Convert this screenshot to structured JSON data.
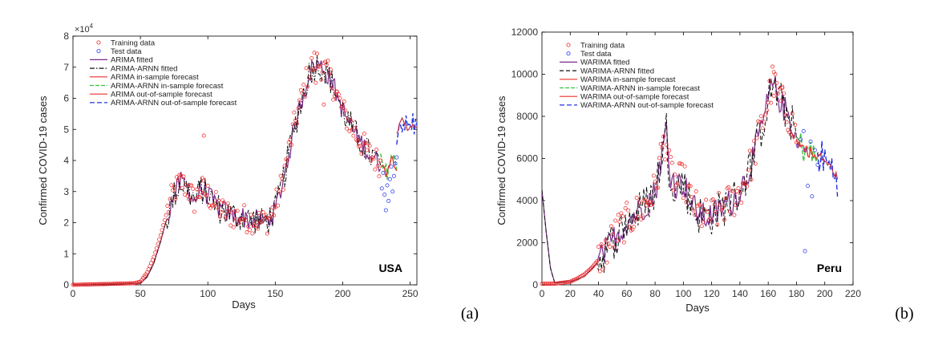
{
  "chart_data": [
    {
      "type": "line",
      "panel_label": "(a)",
      "country": "USA",
      "xlabel": "Days",
      "ylabel": "Confirmed COVID-19 cases",
      "y_multiplier": "×10^4",
      "y_mult_base": "×10",
      "y_mult_exp": "4",
      "xlim": [
        0,
        255
      ],
      "ylim": [
        0,
        8
      ],
      "xticks": [
        0,
        50,
        100,
        150,
        200,
        250
      ],
      "xtick_labels": [
        "0",
        "50",
        "100",
        "150",
        "200",
        "250"
      ],
      "yticks": [
        0,
        1,
        2,
        3,
        4,
        5,
        6,
        7,
        8
      ],
      "ytick_labels": [
        "0",
        "1",
        "2",
        "3",
        "4",
        "5",
        "6",
        "7",
        "8"
      ],
      "legend": [
        {
          "label": "Training data",
          "style": "marker-red"
        },
        {
          "label": "Test data",
          "style": "marker-blue"
        },
        {
          "label": "ARIMA fitted",
          "style": "solid-purple"
        },
        {
          "label": "ARIMA-ARNN fitted",
          "style": "dashdot-black"
        },
        {
          "label": "ARIMA in-sample forecast",
          "style": "solid-red"
        },
        {
          "label": "ARIMA-ARNN in-sample forecast",
          "style": "dashed-green"
        },
        {
          "label": "ARIMA out-of-sample forecast",
          "style": "solid-red"
        },
        {
          "label": "ARIMA-ARNN out-of-sample forecast",
          "style": "dashed-blue"
        }
      ],
      "training_key": [
        [
          0,
          0
        ],
        [
          45,
          0.05
        ],
        [
          50,
          0.1
        ],
        [
          55,
          0.4
        ],
        [
          60,
          0.9
        ],
        [
          65,
          1.6
        ],
        [
          70,
          2.4
        ],
        [
          75,
          3.0
        ],
        [
          80,
          3.3
        ],
        [
          85,
          3.1
        ],
        [
          90,
          2.7
        ],
        [
          95,
          3.1
        ],
        [
          100,
          2.9
        ],
        [
          105,
          2.6
        ],
        [
          110,
          2.4
        ],
        [
          115,
          2.3
        ],
        [
          120,
          2.2
        ],
        [
          125,
          2.2
        ],
        [
          130,
          2.1
        ],
        [
          135,
          2.1
        ],
        [
          140,
          2.0
        ],
        [
          145,
          2.1
        ],
        [
          150,
          2.5
        ],
        [
          155,
          3.3
        ],
        [
          160,
          4.3
        ],
        [
          165,
          5.3
        ],
        [
          170,
          6.1
        ],
        [
          175,
          6.9
        ],
        [
          180,
          7.2
        ],
        [
          185,
          7.0
        ],
        [
          190,
          6.7
        ],
        [
          195,
          6.2
        ],
        [
          200,
          5.6
        ],
        [
          205,
          5.2
        ],
        [
          210,
          4.8
        ],
        [
          215,
          4.5
        ],
        [
          220,
          4.2
        ],
        [
          225,
          4.0
        ],
        [
          228,
          3.9
        ]
      ],
      "fitted_key": [
        [
          0,
          0
        ],
        [
          50,
          0.05
        ],
        [
          55,
          0.25
        ],
        [
          60,
          0.7
        ],
        [
          65,
          1.4
        ],
        [
          70,
          2.2
        ],
        [
          75,
          2.9
        ],
        [
          80,
          3.3
        ],
        [
          85,
          3.1
        ],
        [
          90,
          2.7
        ],
        [
          95,
          3.1
        ],
        [
          100,
          2.9
        ],
        [
          105,
          2.6
        ],
        [
          110,
          2.4
        ],
        [
          115,
          2.3
        ],
        [
          120,
          2.2
        ],
        [
          125,
          2.2
        ],
        [
          130,
          2.1
        ],
        [
          135,
          2.1
        ],
        [
          140,
          2.0
        ],
        [
          145,
          2.1
        ],
        [
          150,
          2.4
        ],
        [
          155,
          3.2
        ],
        [
          160,
          4.2
        ],
        [
          165,
          5.2
        ],
        [
          170,
          6.0
        ],
        [
          175,
          6.8
        ],
        [
          180,
          7.1
        ],
        [
          185,
          7.0
        ],
        [
          190,
          6.7
        ],
        [
          195,
          6.2
        ],
        [
          200,
          5.6
        ],
        [
          205,
          5.2
        ],
        [
          210,
          4.8
        ],
        [
          215,
          4.5
        ],
        [
          220,
          4.2
        ],
        [
          225,
          4.0
        ],
        [
          228,
          3.9
        ]
      ],
      "insample_key": [
        [
          228,
          3.9
        ],
        [
          232,
          3.6
        ],
        [
          236,
          4.1
        ],
        [
          240,
          3.8
        ]
      ],
      "outsample_key": [
        [
          240,
          4.9
        ],
        [
          244,
          5.3
        ],
        [
          248,
          5.0
        ],
        [
          252,
          5.2
        ],
        [
          255,
          5.0
        ]
      ],
      "test_points": [
        [
          229,
          3.1
        ],
        [
          230,
          3.6
        ],
        [
          231,
          2.9
        ],
        [
          232,
          2.4
        ],
        [
          233,
          3.2
        ],
        [
          234,
          2.7
        ],
        [
          235,
          3.4
        ],
        [
          236,
          3.8
        ],
        [
          237,
          3.0
        ],
        [
          238,
          3.5
        ],
        [
          239,
          3.9
        ],
        [
          240,
          4.1
        ]
      ],
      "outliers": [
        [
          97,
          4.8
        ],
        [
          180,
          6.5
        ],
        [
          186,
          5.8
        ]
      ]
    },
    {
      "type": "line",
      "panel_label": "(b)",
      "country": "Peru",
      "xlabel": "Days",
      "ylabel": "Confirmed COVID-19 cases",
      "xlim": [
        0,
        220
      ],
      "ylim": [
        0,
        12000
      ],
      "xticks": [
        0,
        20,
        40,
        60,
        80,
        100,
        120,
        140,
        160,
        180,
        200,
        220
      ],
      "xtick_labels": [
        "0",
        "20",
        "40",
        "60",
        "80",
        "100",
        "120",
        "140",
        "160",
        "180",
        "200",
        "220"
      ],
      "yticks": [
        0,
        2000,
        4000,
        6000,
        8000,
        10000,
        12000
      ],
      "ytick_labels": [
        "0",
        "2000",
        "4000",
        "6000",
        "8000",
        "10000",
        "12000"
      ],
      "legend": [
        {
          "label": "Training data",
          "style": "marker-red"
        },
        {
          "label": "Test data",
          "style": "marker-blue"
        },
        {
          "label": "WARIMA fitted",
          "style": "solid-purple"
        },
        {
          "label": "WARIMA-ARNN fitted",
          "style": "dashed-black"
        },
        {
          "label": "WARIMA in-sample forecast",
          "style": "solid-red"
        },
        {
          "label": "WARIMA-ARNN in-sample forecast",
          "style": "dashed-green"
        },
        {
          "label": "WARIMA out-of-sample forecast",
          "style": "solid-red"
        },
        {
          "label": "WARIMA-ARNN out-of-sample forecast",
          "style": "dashed-blue"
        }
      ],
      "training_key": [
        [
          0,
          50
        ],
        [
          10,
          60
        ],
        [
          20,
          150
        ],
        [
          25,
          300
        ],
        [
          30,
          500
        ],
        [
          35,
          800
        ],
        [
          40,
          1200
        ],
        [
          45,
          1600
        ],
        [
          50,
          2200
        ],
        [
          55,
          2700
        ],
        [
          60,
          3000
        ],
        [
          65,
          3300
        ],
        [
          70,
          3600
        ],
        [
          75,
          4000
        ],
        [
          80,
          4500
        ],
        [
          85,
          6500
        ],
        [
          88,
          7000
        ],
        [
          90,
          5500
        ],
        [
          95,
          4800
        ],
        [
          100,
          5000
        ],
        [
          105,
          4000
        ],
        [
          110,
          3500
        ],
        [
          115,
          3200
        ],
        [
          120,
          3300
        ],
        [
          125,
          3500
        ],
        [
          130,
          3800
        ],
        [
          135,
          4000
        ],
        [
          140,
          4500
        ],
        [
          145,
          5200
        ],
        [
          150,
          6200
        ],
        [
          155,
          7500
        ],
        [
          160,
          8800
        ],
        [
          163,
          9600
        ],
        [
          167,
          9000
        ],
        [
          170,
          8500
        ],
        [
          175,
          8000
        ],
        [
          180,
          7000
        ]
      ],
      "fitted_key": [
        [
          0,
          4500
        ],
        [
          3,
          2500
        ],
        [
          6,
          800
        ],
        [
          9,
          100
        ],
        [
          20,
          150
        ],
        [
          30,
          400
        ],
        [
          40,
          1100
        ],
        [
          50,
          2100
        ],
        [
          60,
          3000
        ],
        [
          70,
          3600
        ],
        [
          80,
          4400
        ],
        [
          85,
          6300
        ],
        [
          88,
          7400
        ],
        [
          90,
          5400
        ],
        [
          95,
          4700
        ],
        [
          100,
          4900
        ],
        [
          105,
          3900
        ],
        [
          110,
          3400
        ],
        [
          115,
          3200
        ],
        [
          120,
          3300
        ],
        [
          125,
          3500
        ],
        [
          130,
          3800
        ],
        [
          135,
          4000
        ],
        [
          140,
          4500
        ],
        [
          145,
          5200
        ],
        [
          150,
          6200
        ],
        [
          155,
          7400
        ],
        [
          160,
          8700
        ],
        [
          163,
          9500
        ],
        [
          167,
          9000
        ],
        [
          170,
          8500
        ],
        [
          175,
          8000
        ],
        [
          180,
          7000
        ]
      ],
      "insample_key": [
        [
          180,
          6800
        ],
        [
          185,
          6500
        ],
        [
          190,
          6300
        ],
        [
          195,
          5900
        ]
      ],
      "outsample_key": [
        [
          195,
          6200
        ],
        [
          200,
          5900
        ],
        [
          205,
          5500
        ],
        [
          209,
          5100
        ]
      ],
      "test_points": [
        [
          181,
          6600
        ],
        [
          183,
          6900
        ],
        [
          185,
          7300
        ],
        [
          186,
          6400
        ],
        [
          188,
          4700
        ],
        [
          190,
          6800
        ],
        [
          191,
          4200
        ],
        [
          193,
          6400
        ],
        [
          195,
          5700
        ],
        [
          186,
          1600
        ]
      ],
      "outliers": [
        [
          164,
          10100
        ],
        [
          170,
          9400
        ]
      ]
    }
  ]
}
